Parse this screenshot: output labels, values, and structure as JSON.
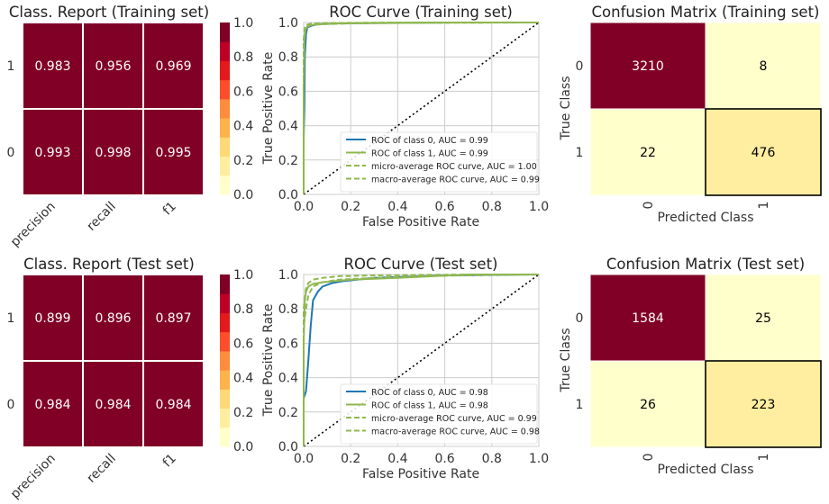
{
  "colors": {
    "scale": [
      "#ffffcc",
      "#ffeda0",
      "#fed976",
      "#feb24c",
      "#fd8d3c",
      "#fc4e2a",
      "#e31a1c",
      "#bd0026",
      "#800026"
    ],
    "roc_class0": "#1f77b4",
    "roc_class1": "#8fb84f",
    "grid": "#cccccc",
    "diagonal": "#000000"
  },
  "chart_data": [
    {
      "type": "heatmap",
      "id": "cr_train",
      "title": "Class. Report (Training set)",
      "columns": [
        "precision",
        "recall",
        "f1"
      ],
      "rows": [
        "1",
        "0"
      ],
      "values": [
        [
          0.983,
          0.956,
          0.969
        ],
        [
          0.993,
          0.998,
          0.995
        ]
      ],
      "value_labels": [
        [
          "0.983",
          "0.956",
          "0.969"
        ],
        [
          "0.993",
          "0.998",
          "0.995"
        ]
      ],
      "colorbar": {
        "min": 0.0,
        "max": 1.0,
        "ticks": [
          "0.0",
          "0.2",
          "0.4",
          "0.6",
          "0.8",
          "1.0"
        ]
      }
    },
    {
      "type": "line",
      "id": "roc_train",
      "title": "ROC Curve (Training set)",
      "xlabel": "False Positive Rate",
      "ylabel": "True Positive Rate",
      "xlim": [
        0,
        1
      ],
      "ylim": [
        0,
        1
      ],
      "xticks": [
        "0.0",
        "0.2",
        "0.4",
        "0.6",
        "0.8",
        "1.0"
      ],
      "yticks": [
        "0.0",
        "0.2",
        "0.4",
        "0.6",
        "0.8",
        "1.0"
      ],
      "grid": true,
      "legend_position": "lower-right",
      "series": [
        {
          "name": "ROC of class 0, AUC = 0.99",
          "dashed": false,
          "color_key": "roc_class0",
          "x": [
            0,
            0,
            0.003,
            0.005,
            0.01,
            0.015,
            0.03,
            0.06,
            0.15,
            0.4,
            0.7,
            1.0
          ],
          "y": [
            0,
            0.32,
            0.5,
            0.8,
            0.93,
            0.97,
            0.98,
            0.99,
            0.995,
            0.998,
            1.0,
            1.0
          ]
        },
        {
          "name": "ROC of class 1, AUC = 0.99",
          "dashed": false,
          "color_key": "roc_class1",
          "x": [
            0,
            0,
            0.003,
            0.008,
            0.015,
            0.03,
            0.06,
            0.15,
            0.3,
            0.6,
            1.0
          ],
          "y": [
            0,
            0.6,
            0.9,
            0.96,
            0.975,
            0.985,
            0.99,
            0.995,
            0.998,
            1.0,
            1.0
          ]
        },
        {
          "name": "micro-average ROC curve, AUC = 1.00",
          "dashed": true,
          "color_key": "roc_class1",
          "x": [
            0,
            0,
            0.005,
            0.01,
            0.03,
            0.1,
            0.3,
            1.0
          ],
          "y": [
            0,
            0.9,
            0.97,
            0.985,
            0.993,
            0.997,
            0.999,
            1.0
          ]
        },
        {
          "name": "macro-average ROC curve, AUC = 0.99",
          "dashed": true,
          "color_key": "roc_class1",
          "x": [
            0,
            0,
            0.005,
            0.01,
            0.03,
            0.08,
            0.2,
            0.5,
            1.0
          ],
          "y": [
            0,
            0.85,
            0.95,
            0.975,
            0.985,
            0.99,
            0.995,
            0.998,
            1.0
          ]
        }
      ]
    },
    {
      "type": "heatmap",
      "id": "cm_train",
      "title": "Confusion Matrix (Training set)",
      "xlabel": "Predicted Class",
      "ylabel": "True Class",
      "columns": [
        "0",
        "1"
      ],
      "rows": [
        "0",
        "1"
      ],
      "values": [
        [
          3210,
          8
        ],
        [
          22,
          476
        ]
      ],
      "cell_colors": [
        "#800026",
        "#ffffcc",
        "#ffffcc",
        "#ffeda0"
      ]
    },
    {
      "type": "heatmap",
      "id": "cr_test",
      "title": "Class. Report (Test set)",
      "columns": [
        "precision",
        "recall",
        "f1"
      ],
      "rows": [
        "1",
        "0"
      ],
      "values": [
        [
          0.899,
          0.896,
          0.897
        ],
        [
          0.984,
          0.984,
          0.984
        ]
      ],
      "value_labels": [
        [
          "0.899",
          "0.896",
          "0.897"
        ],
        [
          "0.984",
          "0.984",
          "0.984"
        ]
      ],
      "colorbar": {
        "min": 0.0,
        "max": 1.0,
        "ticks": [
          "0.0",
          "0.2",
          "0.4",
          "0.6",
          "0.8",
          "1.0"
        ]
      }
    },
    {
      "type": "line",
      "id": "roc_test",
      "title": "ROC Curve (Test set)",
      "xlabel": "False Positive Rate",
      "ylabel": "True Positive Rate",
      "xlim": [
        0,
        1
      ],
      "ylim": [
        0,
        1
      ],
      "xticks": [
        "0.0",
        "0.2",
        "0.4",
        "0.6",
        "0.8",
        "1.0"
      ],
      "yticks": [
        "0.0",
        "0.2",
        "0.4",
        "0.6",
        "0.8",
        "1.0"
      ],
      "grid": true,
      "legend_position": "lower-right",
      "series": [
        {
          "name": "ROC of class 0, AUC = 0.98",
          "dashed": false,
          "color_key": "roc_class0",
          "x": [
            0,
            0,
            0.01,
            0.02,
            0.03,
            0.04,
            0.06,
            0.08,
            0.12,
            0.16,
            0.3,
            0.6,
            1.0
          ],
          "y": [
            0,
            0.28,
            0.32,
            0.5,
            0.7,
            0.85,
            0.9,
            0.93,
            0.95,
            0.96,
            0.98,
            0.995,
            1.0
          ]
        },
        {
          "name": "ROC of class 1, AUC = 0.98",
          "dashed": false,
          "color_key": "roc_class1",
          "x": [
            0,
            0,
            0.005,
            0.01,
            0.02,
            0.04,
            0.08,
            0.2,
            0.4,
            0.7,
            1.0
          ],
          "y": [
            0,
            0.6,
            0.85,
            0.9,
            0.93,
            0.945,
            0.955,
            0.97,
            0.98,
            1.0,
            1.0
          ]
        },
        {
          "name": "micro-average ROC curve, AUC = 0.99",
          "dashed": true,
          "color_key": "roc_class1",
          "x": [
            0,
            0,
            0.005,
            0.01,
            0.02,
            0.04,
            0.08,
            0.15,
            0.3,
            0.6,
            1.0
          ],
          "y": [
            0,
            0.8,
            0.87,
            0.92,
            0.95,
            0.97,
            0.98,
            0.99,
            0.995,
            0.999,
            1.0
          ]
        },
        {
          "name": "macro-average ROC curve, AUC = 0.98",
          "dashed": true,
          "color_key": "roc_class1",
          "x": [
            0,
            0,
            0.01,
            0.02,
            0.04,
            0.08,
            0.15,
            0.3,
            0.5,
            0.8,
            1.0
          ],
          "y": [
            0,
            0.7,
            0.8,
            0.88,
            0.93,
            0.955,
            0.97,
            0.98,
            0.99,
            0.998,
            1.0
          ]
        }
      ]
    },
    {
      "type": "heatmap",
      "id": "cm_test",
      "title": "Confusion Matrix (Test set)",
      "xlabel": "Predicted Class",
      "ylabel": "True Class",
      "columns": [
        "0",
        "1"
      ],
      "rows": [
        "0",
        "1"
      ],
      "values": [
        [
          1584,
          25
        ],
        [
          26,
          223
        ]
      ],
      "cell_colors": [
        "#800026",
        "#ffffcc",
        "#ffffcc",
        "#ffeda0"
      ]
    }
  ]
}
